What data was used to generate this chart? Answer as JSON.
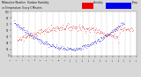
{
  "title": "Milwaukee Weather Outdoor Humidity vs Temperature Every 5 Minutes",
  "red_label": "Outdoor Humidity",
  "blue_label": "Temperature",
  "background_color": "#d8d8d8",
  "plot_bg_color": "#ffffff",
  "red_color": "#dd0000",
  "blue_color": "#0000cc",
  "dot_size": 0.8,
  "grid_color": "#bbbbbb",
  "legend_red": "#ee0000",
  "legend_blue": "#0000ee"
}
